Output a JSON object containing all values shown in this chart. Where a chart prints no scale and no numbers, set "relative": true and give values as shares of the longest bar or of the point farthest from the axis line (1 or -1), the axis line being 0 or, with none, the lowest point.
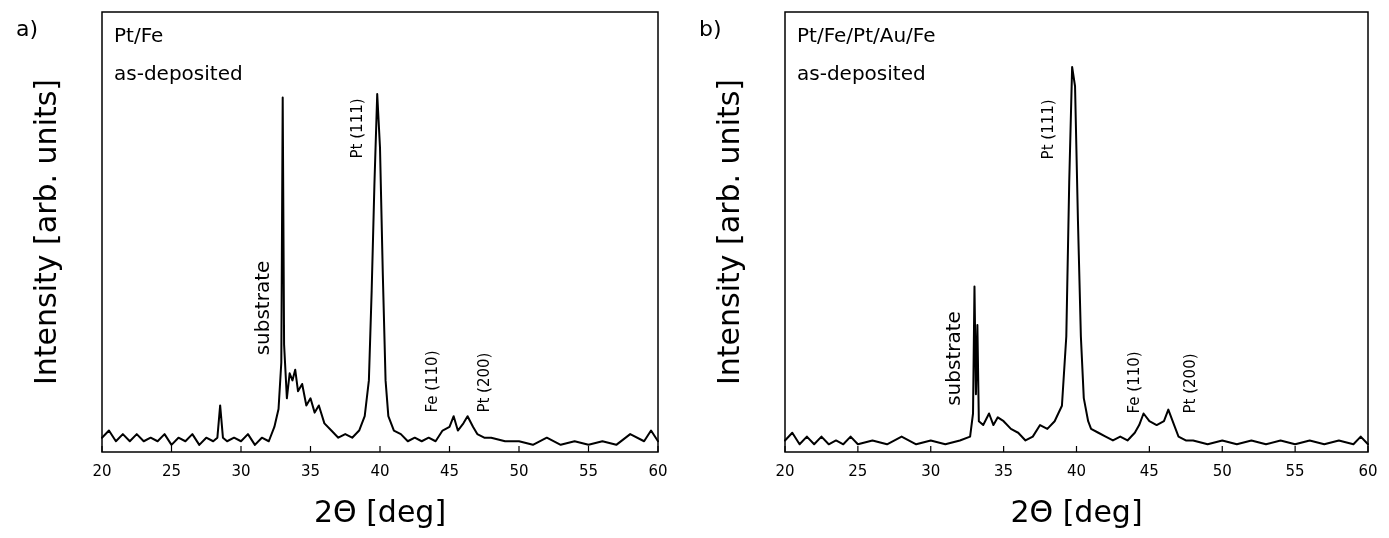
{
  "chart_data": [
    {
      "type": "line",
      "title": "a)",
      "xlabel": "2Θ [deg]",
      "ylabel": "Intensity [arb. units]",
      "relative": true,
      "xlim": [
        20,
        60
      ],
      "xticks": [
        20,
        25,
        30,
        35,
        40,
        45,
        50,
        55,
        60
      ],
      "tick_labels": "x",
      "annotations": [
        "Pt/Fe",
        "as-deposited",
        "substrate",
        "Pt (111)",
        "Fe (110)",
        "Pt (200)"
      ],
      "series": [
        {
          "color": "#000000",
          "x": [
            20,
            20.5,
            21,
            21.5,
            22,
            22.5,
            23,
            23.5,
            24,
            24.5,
            25,
            25.5,
            26,
            26.5,
            27,
            27.5,
            28,
            28.3,
            28.5,
            28.7,
            29,
            29.5,
            30,
            30.5,
            31,
            31.5,
            32,
            32.4,
            32.7,
            32.9,
            33.0,
            33.1,
            33.3,
            33.5,
            33.7,
            33.9,
            34.1,
            34.4,
            34.7,
            35.0,
            35.3,
            35.6,
            36,
            36.5,
            37,
            37.5,
            38,
            38.5,
            38.9,
            39.2,
            39.4,
            39.6,
            39.8,
            40.0,
            40.2,
            40.4,
            40.6,
            41,
            41.5,
            42,
            42.5,
            43,
            43.5,
            44,
            44.5,
            45,
            45.3,
            45.6,
            46,
            46.3,
            46.7,
            47,
            47.5,
            48,
            49,
            50,
            51,
            52,
            53,
            54,
            55,
            56,
            57,
            58,
            59,
            59.5,
            60
          ],
          "values": [
            0.04,
            0.06,
            0.03,
            0.05,
            0.03,
            0.05,
            0.03,
            0.04,
            0.03,
            0.05,
            0.02,
            0.04,
            0.03,
            0.05,
            0.02,
            0.04,
            0.03,
            0.04,
            0.13,
            0.04,
            0.03,
            0.04,
            0.03,
            0.05,
            0.02,
            0.04,
            0.03,
            0.07,
            0.12,
            0.25,
            0.99,
            0.3,
            0.15,
            0.22,
            0.2,
            0.23,
            0.17,
            0.19,
            0.13,
            0.15,
            0.11,
            0.13,
            0.08,
            0.06,
            0.04,
            0.05,
            0.04,
            0.06,
            0.1,
            0.2,
            0.45,
            0.75,
            1.0,
            0.85,
            0.5,
            0.2,
            0.1,
            0.06,
            0.05,
            0.03,
            0.04,
            0.03,
            0.04,
            0.03,
            0.06,
            0.07,
            0.1,
            0.06,
            0.08,
            0.1,
            0.07,
            0.05,
            0.04,
            0.04,
            0.03,
            0.03,
            0.02,
            0.04,
            0.02,
            0.03,
            0.02,
            0.03,
            0.02,
            0.05,
            0.03,
            0.06,
            0.03
          ]
        }
      ]
    },
    {
      "type": "line",
      "title": "b)",
      "xlabel": "2Θ [deg]",
      "ylabel": "Intensity [arb. units]",
      "relative": true,
      "xlim": [
        20,
        60
      ],
      "xticks": [
        20,
        25,
        30,
        35,
        40,
        45,
        50,
        55,
        60
      ],
      "tick_labels": "x",
      "annotations": [
        "Pt/Fe/Pt/Au/Fe",
        "as-deposited",
        "substrate",
        "Pt (111)",
        "Fe (110)",
        "Pt (200)"
      ],
      "series": [
        {
          "color": "#000000",
          "x": [
            20,
            20.5,
            21,
            21.5,
            22,
            22.5,
            23,
            23.5,
            24,
            24.5,
            25,
            26,
            27,
            28,
            29,
            30,
            31,
            32,
            32.7,
            32.9,
            33.0,
            33.1,
            33.2,
            33.3,
            33.6,
            34,
            34.3,
            34.6,
            35,
            35.5,
            36,
            36.5,
            37,
            37.5,
            38,
            38.5,
            39,
            39.3,
            39.5,
            39.7,
            39.9,
            40.1,
            40.3,
            40.5,
            40.8,
            41,
            41.5,
            42,
            42.5,
            43,
            43.5,
            44,
            44.3,
            44.6,
            45,
            45.5,
            46,
            46.3,
            46.7,
            47,
            47.5,
            48,
            49,
            50,
            51,
            52,
            53,
            54,
            55,
            56,
            57,
            58,
            59,
            59.5,
            60
          ],
          "values": [
            0.03,
            0.05,
            0.02,
            0.04,
            0.02,
            0.04,
            0.02,
            0.03,
            0.02,
            0.04,
            0.02,
            0.03,
            0.02,
            0.04,
            0.02,
            0.03,
            0.02,
            0.03,
            0.04,
            0.1,
            0.43,
            0.15,
            0.33,
            0.08,
            0.07,
            0.1,
            0.07,
            0.09,
            0.08,
            0.06,
            0.05,
            0.03,
            0.04,
            0.07,
            0.06,
            0.08,
            0.12,
            0.3,
            0.7,
            1.0,
            0.95,
            0.6,
            0.3,
            0.14,
            0.08,
            0.06,
            0.05,
            0.04,
            0.03,
            0.04,
            0.03,
            0.05,
            0.07,
            0.1,
            0.08,
            0.07,
            0.08,
            0.11,
            0.07,
            0.04,
            0.03,
            0.03,
            0.02,
            0.03,
            0.02,
            0.03,
            0.02,
            0.03,
            0.02,
            0.03,
            0.02,
            0.03,
            0.02,
            0.04,
            0.02
          ]
        }
      ]
    }
  ]
}
